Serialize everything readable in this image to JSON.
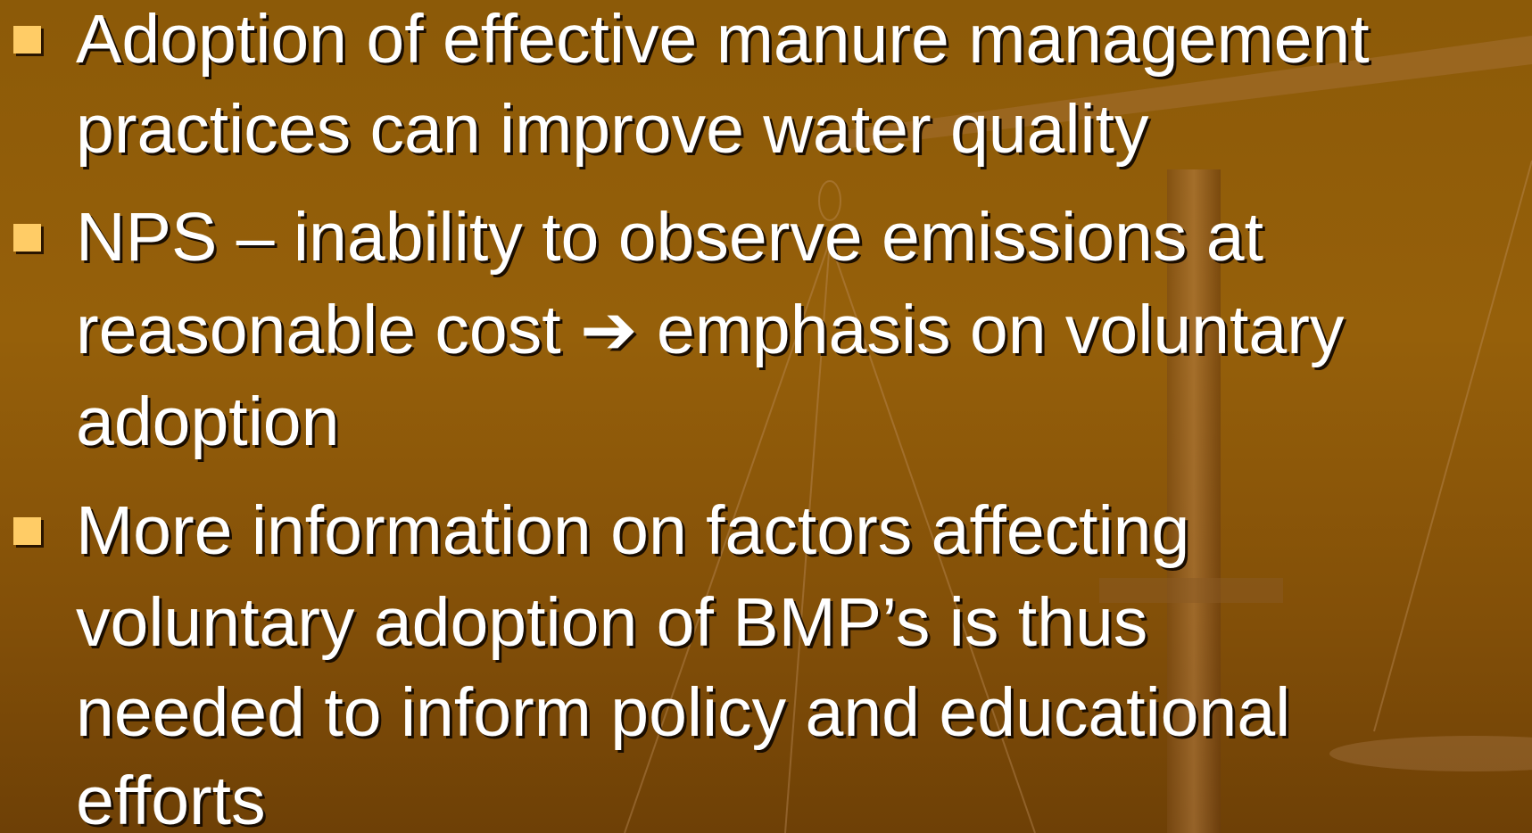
{
  "bullets": [
    {
      "lines": [
        "Adoption of effective manure management",
        "practices can improve water quality"
      ]
    },
    {
      "lines": [
        "NPS – inability to observe emissions at",
        "reasonable cost ➔ emphasis on voluntary",
        "adoption"
      ]
    },
    {
      "lines": [
        "More information on factors affecting",
        "voluntary adoption of BMP’s is thus",
        "needed to inform policy and educational",
        "efforts"
      ]
    }
  ]
}
